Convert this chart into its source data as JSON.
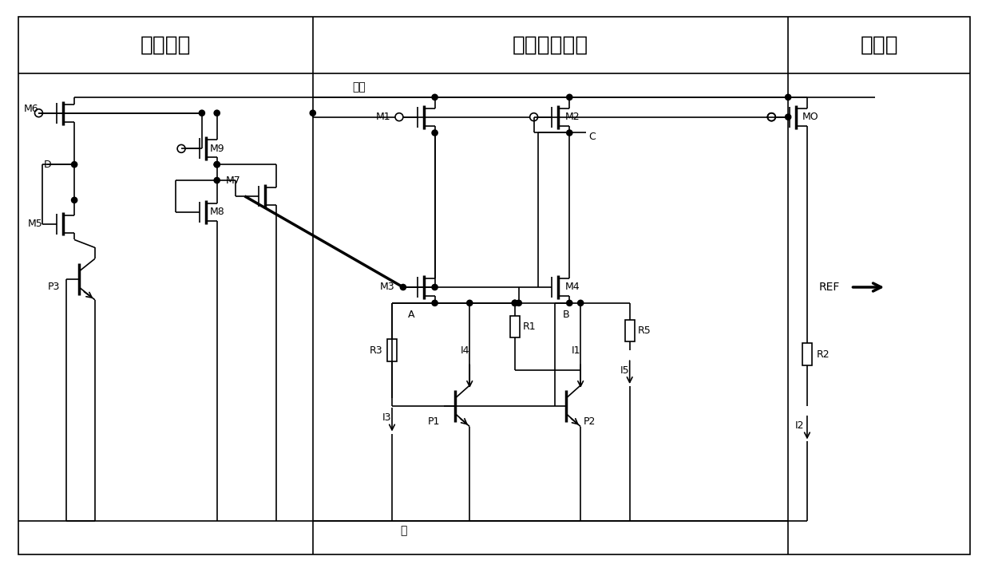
{
  "title_startup": "启动电路",
  "title_bandgap": "基准产生电路",
  "title_output": "输出级",
  "label_vdd": "电源",
  "label_gnd": "地",
  "label_REF": "REF",
  "bg_color": "#ffffff",
  "line_color": "#000000",
  "fig_width": 12.4,
  "fig_height": 7.17,
  "font_size_title": 19,
  "font_size_small": 9,
  "font_size_label": 10
}
